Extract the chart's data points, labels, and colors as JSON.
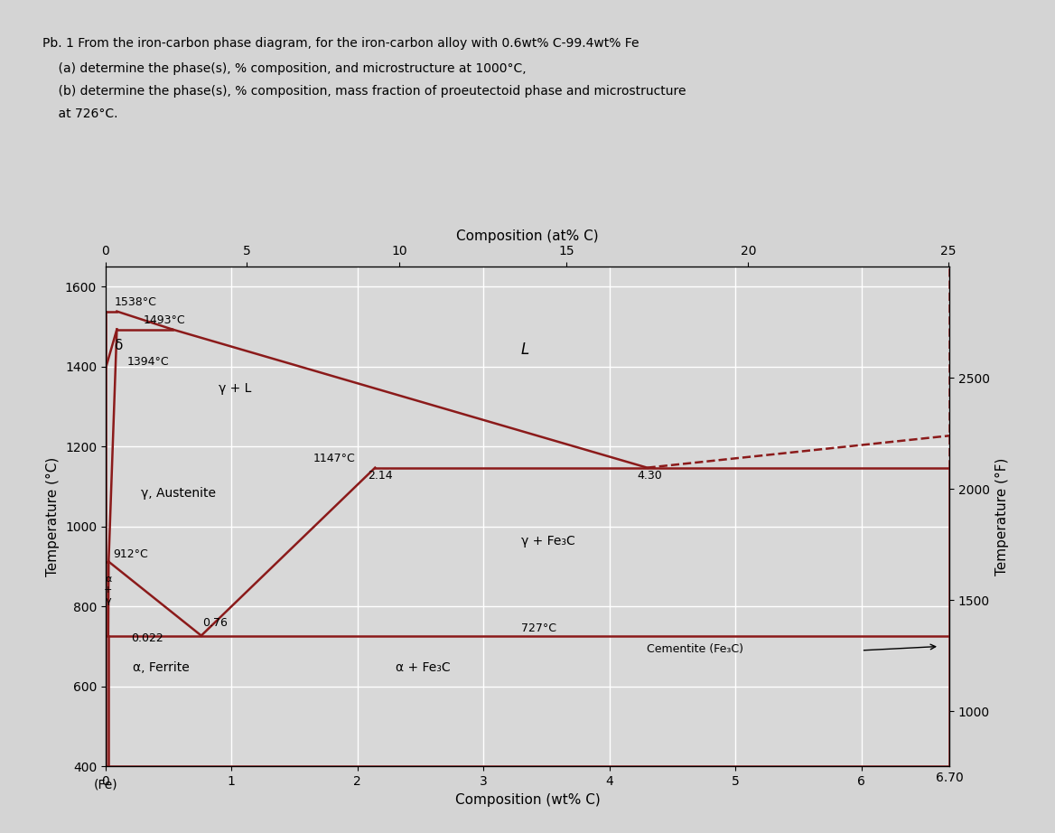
{
  "xlabel": "Composition (wt% C)",
  "ylabel_left": "Temperature (°C)",
  "ylabel_right": "Temperature (°F)",
  "top_xlabel": "Composition (at% C)",
  "xlim": [
    0,
    6.7
  ],
  "ylim": [
    400,
    1650
  ],
  "left_yticks": [
    400,
    600,
    800,
    1000,
    1200,
    1400,
    1600
  ],
  "bg_color": "#d8d8d8",
  "line_color": "#8b1a1a",
  "grid_color": "#ffffff",
  "title_lines": [
    "Pb. 1 From the iron-carbon phase diagram, for the iron-carbon alloy with 0.6wt% C-99.4wt% Fe",
    "    (a) determine the phase(s), % composition, and microstructure at 1000°C,",
    "    (b) determine the phase(s), % composition, mass fraction of proeutectoid phase and microstructure",
    "    at 726°C."
  ]
}
